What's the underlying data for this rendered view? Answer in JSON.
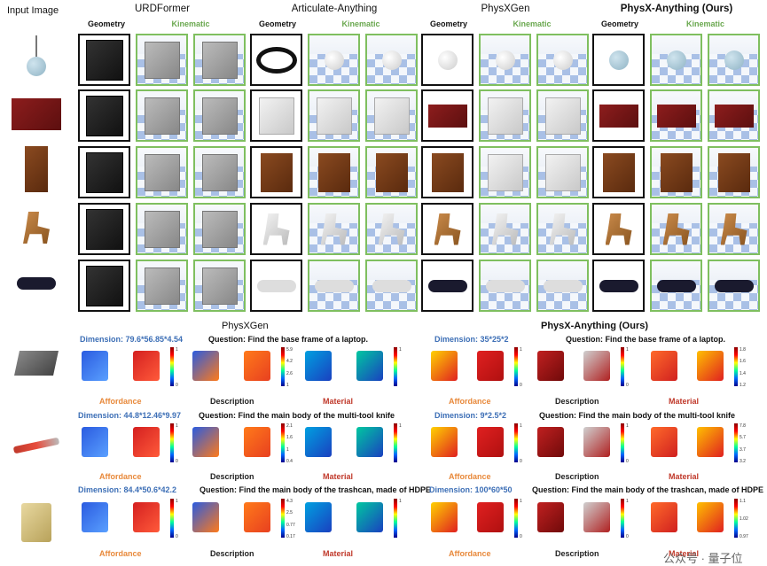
{
  "header": {
    "input_image": "Input Image",
    "methods": [
      "URDFormer",
      "Articulate-Anything",
      "PhysXGen",
      "PhysX-Anything (Ours)"
    ],
    "geometry": "Geometry",
    "kinematic": "Kinematic"
  },
  "rows": [
    "lamp",
    "cabinet",
    "bookshelf",
    "chair",
    "sunglasses"
  ],
  "bottom": {
    "left_title": "PhysXGen",
    "right_title": "PhysX-Anything (Ours)",
    "affordance": "Affordance",
    "description": "Description",
    "material": "Material",
    "examples": [
      {
        "object": "laptop",
        "left_dimension": "Dimension: 79.6*56.85*4.54",
        "right_dimension": "Dimension: 35*25*2",
        "question": "Question: Find the base frame of a laptop.",
        "left_desc_ticks": [
          "5.9",
          "4.2",
          "2.6",
          "1"
        ],
        "left_mat_ticks": [
          "1"
        ],
        "right_mat_ticks": [
          "1.8",
          "1.6",
          "1.4",
          "1.2"
        ]
      },
      {
        "object": "multi-tool knife",
        "left_dimension": "Dimension: 44.8*12.46*9.97",
        "right_dimension": "Dimension: 9*2.5*2",
        "question": "Question: Find the main body of the multi-tool knife",
        "left_desc_ticks": [
          "2.1",
          "1.6",
          "1",
          "0.4"
        ],
        "left_mat_ticks": [
          "1"
        ],
        "right_mat_ticks": [
          "7.8",
          "5.7",
          "3.7",
          "3.2"
        ]
      },
      {
        "object": "trashcan",
        "left_dimension": "Dimension: 84.4*50.6*42.2",
        "right_dimension": "Dimension: 100*60*50",
        "question": "Question: Find the main body of the trashcan, made of HDPE",
        "left_desc_ticks": [
          "4.3",
          "2.5",
          "0.77",
          "0.17"
        ],
        "left_mat_ticks": [
          "1"
        ],
        "right_mat_ticks": [
          "1.1",
          "1.02",
          "0.97"
        ]
      }
    ]
  },
  "colorbar_ticks": [
    "1",
    "0"
  ],
  "watermark": "公众号 · 量子位"
}
